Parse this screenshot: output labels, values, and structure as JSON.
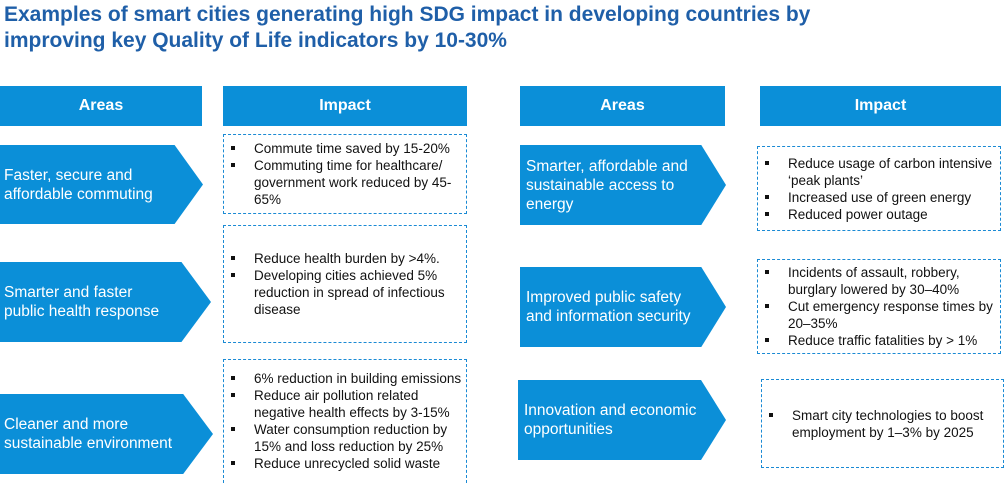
{
  "title": {
    "line1": "Examples of smart cities generating high SDG impact in developing countries by",
    "line2": "improving key Quality of Life indicators by 10-30%"
  },
  "left": {
    "header_areas": "Areas",
    "header_impact": "Impact",
    "rows": [
      {
        "area_lines": [
          "Faster, secure and",
          "affordable commuting"
        ],
        "impacts": [
          "Commute time saved by 15-20%",
          "Commuting time for healthcare/ government work reduced by 45-65%"
        ]
      },
      {
        "area_lines": [
          "Smarter and faster",
          "public health response"
        ],
        "impacts": [
          "Reduce health burden by >4%.",
          "Developing cities achieved 5% reduction in spread of infectious disease"
        ]
      },
      {
        "area_lines": [
          "Cleaner and more",
          "sustainable environment"
        ],
        "impacts": [
          "6% reduction in building emissions",
          "Reduce air pollution related negative health effects by 3-15%",
          "Water consumption reduction by 15% and loss reduction by 25%",
          "Reduce unrecycled solid waste"
        ]
      }
    ]
  },
  "right": {
    "header_areas": "Areas",
    "header_impact": "Impact",
    "rows": [
      {
        "area_lines": [
          "Smarter, affordable and",
          "sustainable access to",
          "energy"
        ],
        "impacts": [
          "Reduce usage of carbon intensive ‘peak plants’",
          "Increased use of green energy",
          "Reduced power outage"
        ]
      },
      {
        "area_lines": [
          "Improved public safety",
          "and information security"
        ],
        "impacts": [
          "Incidents of assault, robbery, burglary lowered by 30–40%",
          "Cut emergency response times by 20–35%",
          "Reduce traffic fatalities by > 1%"
        ]
      },
      {
        "area_lines": [
          "Innovation and economic",
          "opportunities"
        ],
        "impacts": [
          "Smart city technologies to boost employment by 1–3% by 2025"
        ]
      }
    ]
  }
}
